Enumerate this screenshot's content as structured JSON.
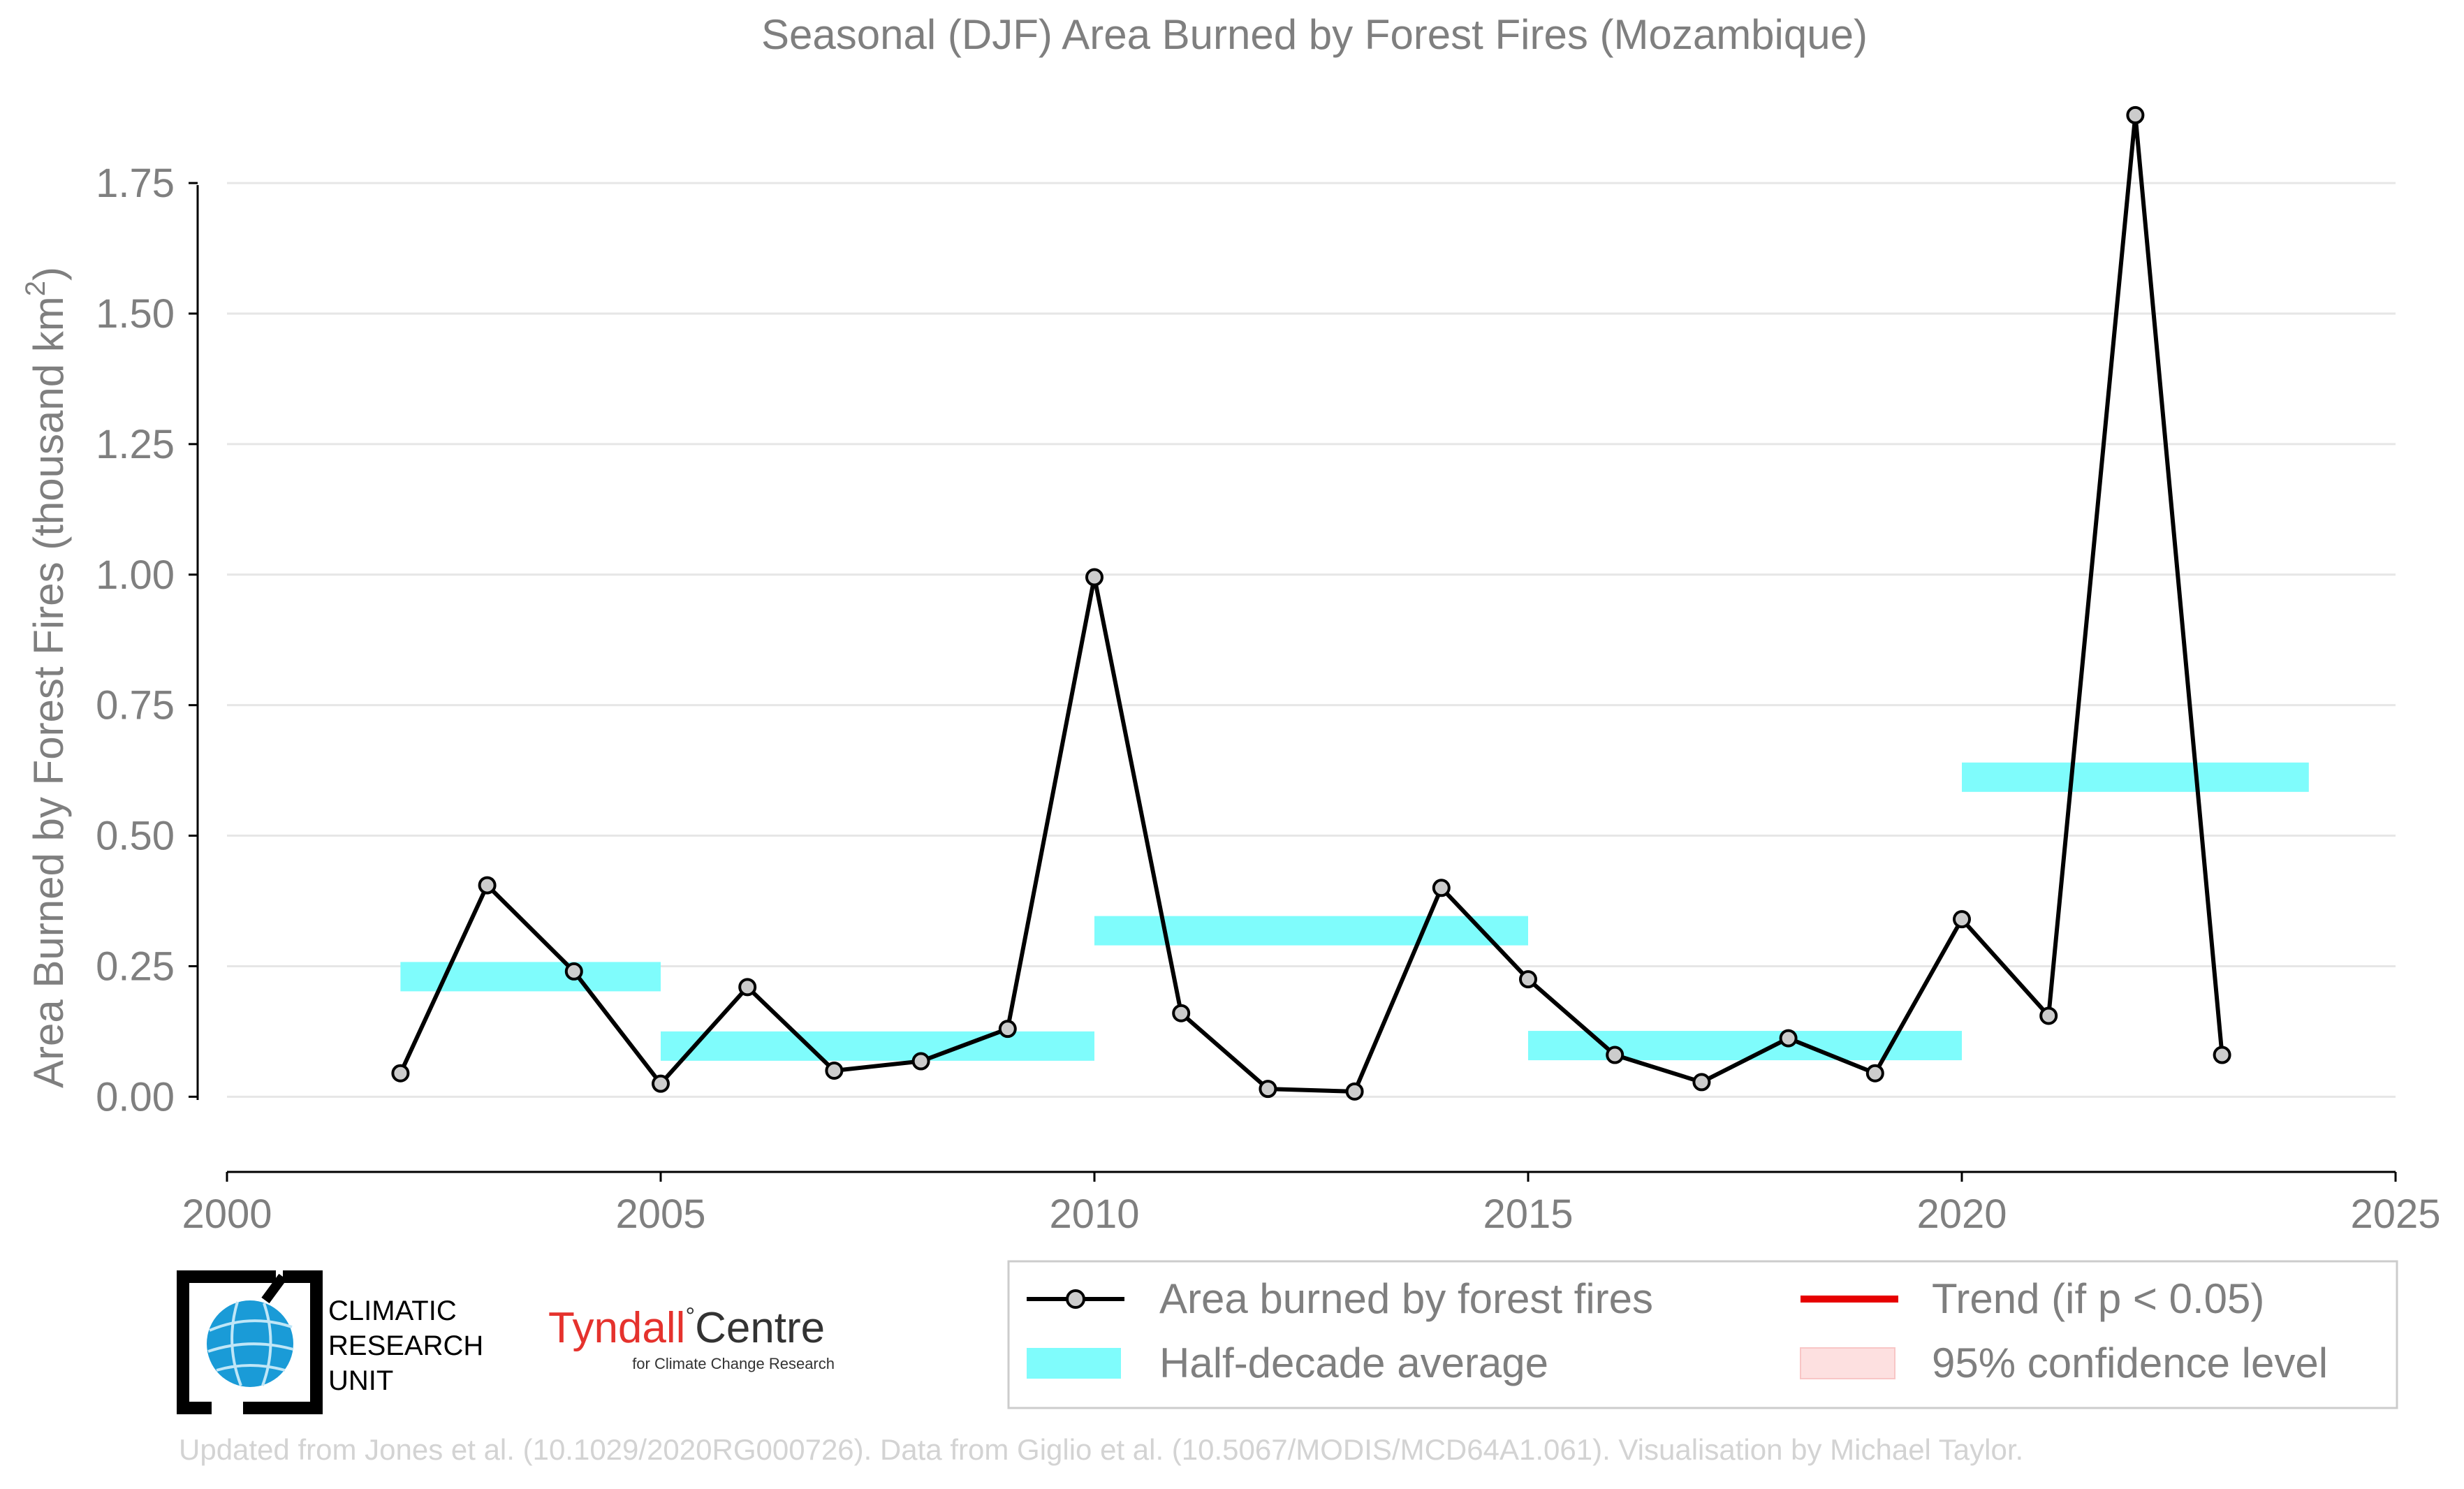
{
  "chart_data": {
    "type": "line",
    "title": "Seasonal (DJF) Area Burned by Forest Fires (Mozambique)",
    "ylabel_main": "Area Burned by Forest Fires (thousand km",
    "ylabel_sup": "2",
    "ylabel_close": ")",
    "xlim": [
      2000,
      2025
    ],
    "ylim": [
      -0.14,
      1.92
    ],
    "x_ticks": [
      {
        "value": 2000,
        "label": "2000"
      },
      {
        "value": 2005,
        "label": "2005"
      },
      {
        "value": 2010,
        "label": "2010"
      },
      {
        "value": 2015,
        "label": "2015"
      },
      {
        "value": 2020,
        "label": "2020"
      },
      {
        "value": 2025,
        "label": "2025"
      }
    ],
    "y_ticks": [
      {
        "value": 0.0,
        "label": "0.00"
      },
      {
        "value": 0.25,
        "label": "0.25"
      },
      {
        "value": 0.5,
        "label": "0.50"
      },
      {
        "value": 0.75,
        "label": "0.75"
      },
      {
        "value": 1.0,
        "label": "1.00"
      },
      {
        "value": 1.25,
        "label": "1.25"
      },
      {
        "value": 1.5,
        "label": "1.50"
      },
      {
        "value": 1.75,
        "label": "1.75"
      }
    ],
    "grid": true,
    "series": [
      {
        "name": "Area burned by forest fires",
        "color": "#000000",
        "marker_fill": "#cccccc",
        "x": [
          2002,
          2003,
          2004,
          2005,
          2006,
          2007,
          2008,
          2009,
          2010,
          2011,
          2012,
          2013,
          2014,
          2015,
          2016,
          2017,
          2018,
          2019,
          2020,
          2021,
          2022,
          2023
        ],
        "y": [
          0.045,
          0.405,
          0.24,
          0.025,
          0.21,
          0.05,
          0.068,
          0.13,
          0.995,
          0.16,
          0.015,
          0.01,
          0.4,
          0.225,
          0.08,
          0.028,
          0.112,
          0.045,
          0.34,
          0.155,
          1.88,
          0.08
        ]
      }
    ],
    "half_decade_average": {
      "name": "Half-decade average",
      "color": "#7ffcfc",
      "segments": [
        {
          "x0": 2002,
          "x1": 2005,
          "y": 0.23
        },
        {
          "x0": 2005,
          "x1": 2010,
          "y": 0.097
        },
        {
          "x0": 2010,
          "x1": 2015,
          "y": 0.318
        },
        {
          "x0": 2015,
          "x1": 2020,
          "y": 0.098
        },
        {
          "x0": 2020,
          "x1": 2024,
          "y": 0.612
        }
      ]
    },
    "legend": {
      "placement": "bottom-right, below plot",
      "items": [
        {
          "label": "Area burned by forest fires",
          "kind": "line-marker",
          "color": "#000000"
        },
        {
          "label": "Trend (if p < 0.05)",
          "kind": "line",
          "color": "#e60000"
        },
        {
          "label": "Half-decade average",
          "kind": "band",
          "color": "#7ffcfc"
        },
        {
          "label": "95% confidence level",
          "kind": "band",
          "color": "#fde0e0"
        }
      ]
    }
  },
  "logos": {
    "cru_line1": "CLIMATIC",
    "cru_line2": "RESEARCH",
    "cru_line3": "UNIT",
    "tyndall_main": "Tyndall",
    "tyndall_degree": "°",
    "tyndall_centre": "Centre",
    "tyndall_sub": "for Climate Change Research"
  },
  "credit": "Updated from Jones et al. (10.1029/2020RG000726). Data from Giglio et al. (10.5067/MODIS/MCD64A1.061). Visualisation by Michael Taylor."
}
